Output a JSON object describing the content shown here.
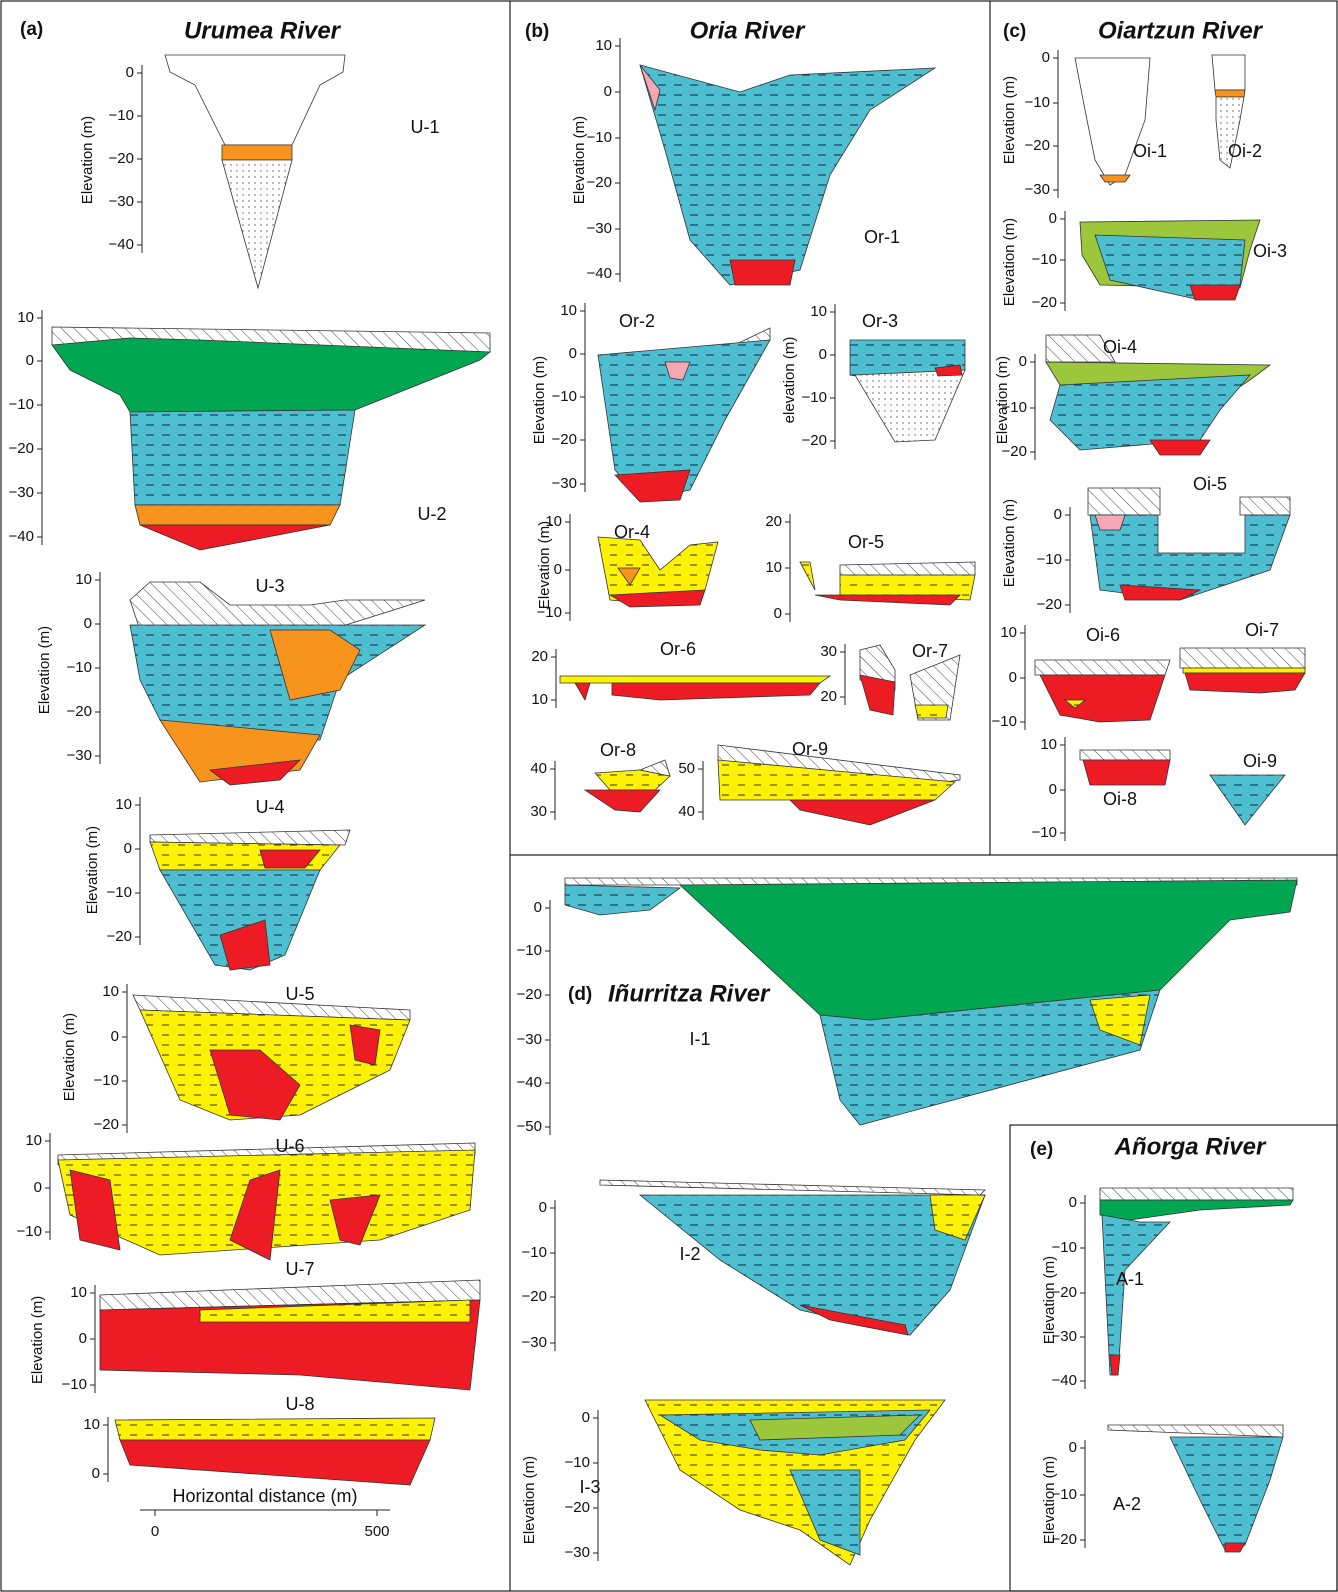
{
  "panels": [
    {
      "label": "(a)",
      "title": "Urumea River",
      "sections": [
        {
          "name": "U-1",
          "axis_label": "Elevation (m)",
          "ticks": [
            "0",
            "−10",
            "−20",
            "−30",
            "−40"
          ]
        },
        {
          "name": "U-2",
          "ticks": [
            "10",
            "0",
            "−10",
            "−20",
            "−30",
            "−40"
          ]
        },
        {
          "name": "U-3",
          "axis_label": "Elevation (m)",
          "ticks": [
            "10",
            "0",
            "−10",
            "−20",
            "−30"
          ]
        },
        {
          "name": "U-4",
          "axis_label": "Elevation (m)",
          "ticks": [
            "10",
            "0",
            "−10",
            "−20"
          ]
        },
        {
          "name": "U-5",
          "axis_label": "Elevation (m)",
          "ticks": [
            "10",
            "0",
            "−10",
            "−20"
          ]
        },
        {
          "name": "U-6",
          "ticks": [
            "10",
            "0",
            "−10"
          ]
        },
        {
          "name": "U-7",
          "axis_label": "Elevation (m)",
          "ticks": [
            "10",
            "0",
            "−10"
          ]
        },
        {
          "name": "U-8",
          "ticks": [
            "10",
            "0"
          ]
        }
      ],
      "x_axis": {
        "label": "Horizontal distance (m)",
        "ticks": [
          "0",
          "500"
        ]
      }
    },
    {
      "label": "(b)",
      "title": "Oria River",
      "sections": [
        {
          "name": "Or-1",
          "axis_label": "Elevation (m)",
          "ticks": [
            "10",
            "0",
            "−10",
            "−20",
            "−30",
            "−40"
          ]
        },
        {
          "name": "Or-2",
          "axis_label": "Elevation (m)",
          "ticks": [
            "10",
            "0",
            "−10",
            "−20",
            "−30"
          ]
        },
        {
          "name": "Or-3",
          "axis_label": "elevation (m)",
          "ticks": [
            "10",
            "0",
            "−10",
            "−20"
          ]
        },
        {
          "name": "Or-4",
          "axis_label": "Elevation (m)",
          "ticks": [
            "10",
            "0",
            "−10"
          ]
        },
        {
          "name": "Or-5",
          "ticks": [
            "20",
            "10",
            "0"
          ]
        },
        {
          "name": "Or-6",
          "ticks": [
            "20",
            "10"
          ]
        },
        {
          "name": "Or-7",
          "ticks": [
            "30",
            "20"
          ]
        },
        {
          "name": "Or-8",
          "ticks": [
            "40",
            "30"
          ]
        },
        {
          "name": "Or-9",
          "ticks": [
            "50",
            "40"
          ]
        }
      ]
    },
    {
      "label": "(c)",
      "title": "Oiartzun River",
      "sections": [
        {
          "name": "Oi-1",
          "axis_label": "Elevation (m)",
          "ticks": [
            "0",
            "−10",
            "−20",
            "−30"
          ]
        },
        {
          "name": "Oi-2",
          "ticks": []
        },
        {
          "name": "Oi-3",
          "axis_label": "Elevation (m)",
          "ticks": [
            "0",
            "−10",
            "−20"
          ]
        },
        {
          "name": "Oi-4",
          "axis_label": "Elevation (m)",
          "ticks": [
            "0",
            "−10",
            "−20"
          ]
        },
        {
          "name": "Oi-5",
          "axis_label": "Elevation (m)",
          "ticks": [
            "0",
            "−10",
            "−20"
          ]
        },
        {
          "name": "Oi-6",
          "ticks": [
            "10",
            "0",
            "−10"
          ]
        },
        {
          "name": "Oi-7",
          "ticks": []
        },
        {
          "name": "Oi-8",
          "ticks": [
            "10",
            "0",
            "−10"
          ]
        },
        {
          "name": "Oi-9",
          "ticks": []
        }
      ]
    },
    {
      "label": "(d)",
      "title": "Iñurritza River",
      "sections": [
        {
          "name": "I-1",
          "ticks": [
            "0",
            "−10",
            "−20",
            "−30",
            "−40",
            "−50"
          ]
        },
        {
          "name": "I-2",
          "ticks": [
            "0",
            "−10",
            "−20",
            "−30"
          ]
        },
        {
          "name": "I-3",
          "axis_label": "Elevation (m)",
          "ticks": [
            "0",
            "−10",
            "−20",
            "−30"
          ]
        }
      ]
    },
    {
      "label": "(e)",
      "title": "Añorga River",
      "sections": [
        {
          "name": "A-1",
          "axis_label": "Elevation (m)",
          "ticks": [
            "0",
            "−10",
            "−20",
            "−30",
            "−40"
          ]
        },
        {
          "name": "A-2",
          "axis_label": "Elevation (m)",
          "ticks": [
            "0",
            "−10",
            "−20"
          ]
        }
      ]
    }
  ]
}
